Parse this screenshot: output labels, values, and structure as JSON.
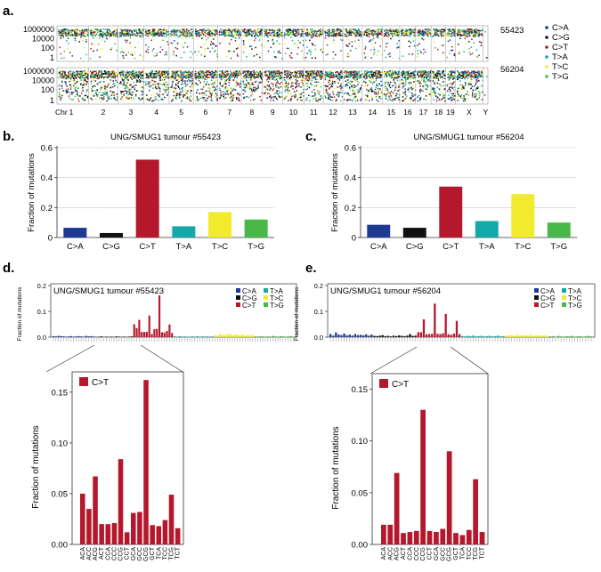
{
  "colors": {
    "C>A": "#1f3a93",
    "C>G": "#111111",
    "C>T": "#b5182c",
    "T>A": "#14a9a9",
    "T>C": "#f2ea2c",
    "T>G": "#4ab848"
  },
  "chart_data": [
    {
      "panel": "a.",
      "type": "scatter",
      "title": "",
      "xlabel_prefix": "Chr",
      "chromosomes": [
        "1",
        "2",
        "3",
        "4",
        "5",
        "6",
        "7",
        "8",
        "9",
        "10",
        "11",
        "12",
        "13",
        "14",
        "15",
        "16",
        "17",
        "18",
        "19",
        "X",
        "Y"
      ],
      "tracks": [
        {
          "label": "55423",
          "yticks": [
            "1000000",
            "10000",
            "100",
            "1"
          ]
        },
        {
          "label": "56204",
          "yticks": [
            "1000000",
            "10000",
            "100",
            "1"
          ]
        }
      ],
      "legend": [
        "C>A",
        "C>G",
        "C>T",
        "T>A",
        "T>C",
        "T>G"
      ]
    },
    {
      "panel": "b.",
      "type": "bar",
      "title": "UNG/SMUG1 tumour #55423",
      "ylabel": "Fraction of mutations",
      "categories": [
        "C>A",
        "C>G",
        "C>T",
        "T>A",
        "T>C",
        "T>G"
      ],
      "values": [
        0.065,
        0.03,
        0.52,
        0.075,
        0.17,
        0.12
      ],
      "ylim": [
        0,
        0.6
      ],
      "yticks": [
        "0",
        "0.2",
        "0.4",
        "0.6"
      ]
    },
    {
      "panel": "c.",
      "type": "bar",
      "title": "UNG/SMUG1 tumour #56204",
      "ylabel": "Fraction of mutations",
      "categories": [
        "C>A",
        "C>G",
        "C>T",
        "T>A",
        "T>C",
        "T>G"
      ],
      "values": [
        0.085,
        0.065,
        0.34,
        0.11,
        0.29,
        0.1
      ],
      "ylim": [
        0,
        0.6
      ],
      "yticks": [
        "0",
        "0.2",
        "0.4",
        "0.6"
      ]
    },
    {
      "panel": "d.",
      "type": "bar",
      "title": "UNG/SMUG1 tumour #55423",
      "ylabel": "Fraction of mutations",
      "ylim": [
        0,
        0.2
      ],
      "yticks": [
        "0.0",
        "0.1",
        "0.2"
      ],
      "legend": [
        "C>A",
        "T>A",
        "C>G",
        "T>C",
        "C>T",
        "T>G"
      ],
      "groups": [
        {
          "name": "C>A",
          "values": [
            0.004,
            0.003,
            0.005,
            0.004,
            0.003,
            0.002,
            0.003,
            0.004,
            0.002,
            0.003,
            0.004,
            0.003,
            0.002,
            0.005,
            0.003,
            0.004
          ]
        },
        {
          "name": "C>G",
          "values": [
            0.002,
            0.001,
            0.002,
            0.003,
            0.001,
            0.002,
            0.001,
            0.002,
            0.001,
            0.003,
            0.002,
            0.001,
            0.002,
            0.001,
            0.002,
            0.003
          ]
        },
        {
          "name": "C>T",
          "values": [
            0.05,
            0.035,
            0.067,
            0.02,
            0.02,
            0.021,
            0.084,
            0.012,
            0.031,
            0.032,
            0.162,
            0.019,
            0.018,
            0.024,
            0.049,
            0.016
          ]
        },
        {
          "name": "T>A",
          "values": [
            0.003,
            0.002,
            0.004,
            0.002,
            0.003,
            0.002,
            0.001,
            0.003,
            0.002,
            0.004,
            0.002,
            0.003,
            0.002,
            0.003,
            0.002,
            0.003
          ]
        },
        {
          "name": "T>C",
          "values": [
            0.008,
            0.006,
            0.012,
            0.01,
            0.009,
            0.011,
            0.014,
            0.007,
            0.01,
            0.009,
            0.008,
            0.011,
            0.006,
            0.009,
            0.007,
            0.008
          ]
        },
        {
          "name": "T>G",
          "values": [
            0.003,
            0.002,
            0.004,
            0.003,
            0.002,
            0.003,
            0.002,
            0.005,
            0.003,
            0.002,
            0.004,
            0.003,
            0.002,
            0.003,
            0.004,
            0.002
          ]
        }
      ]
    },
    {
      "panel": "e.",
      "type": "bar",
      "title": "UNG/SMUG1 tumour #56204",
      "ylabel": "Fraction of mutations",
      "ylim": [
        0,
        0.2
      ],
      "yticks": [
        "0.0",
        "0.1",
        "0.2"
      ],
      "legend": [
        "C>A",
        "T>A",
        "C>G",
        "T>C",
        "C>T",
        "T>G"
      ],
      "groups": [
        {
          "name": "C>A",
          "values": [
            0.012,
            0.006,
            0.018,
            0.01,
            0.008,
            0.014,
            0.007,
            0.01,
            0.006,
            0.012,
            0.008,
            0.009,
            0.007,
            0.011,
            0.006,
            0.01
          ]
        },
        {
          "name": "C>G",
          "values": [
            0.005,
            0.004,
            0.006,
            0.008,
            0.004,
            0.005,
            0.003,
            0.006,
            0.004,
            0.007,
            0.005,
            0.004,
            0.006,
            0.012,
            0.005,
            0.006
          ]
        },
        {
          "name": "C>T",
          "values": [
            0.019,
            0.019,
            0.069,
            0.011,
            0.012,
            0.013,
            0.13,
            0.013,
            0.012,
            0.015,
            0.09,
            0.011,
            0.009,
            0.014,
            0.063,
            0.012
          ]
        },
        {
          "name": "T>A",
          "values": [
            0.004,
            0.003,
            0.005,
            0.004,
            0.006,
            0.003,
            0.004,
            0.005,
            0.003,
            0.004,
            0.005,
            0.003,
            0.004,
            0.006,
            0.003,
            0.004
          ]
        },
        {
          "name": "T>C",
          "values": [
            0.006,
            0.008,
            0.007,
            0.005,
            0.009,
            0.006,
            0.008,
            0.007,
            0.006,
            0.009,
            0.005,
            0.007,
            0.008,
            0.006,
            0.007,
            0.005
          ]
        },
        {
          "name": "T>G",
          "values": [
            0.003,
            0.004,
            0.002,
            0.005,
            0.003,
            0.002,
            0.004,
            0.003,
            0.005,
            0.002,
            0.003,
            0.004,
            0.002,
            0.003,
            0.005,
            0.003
          ]
        }
      ]
    },
    {
      "panel": "d-zoom",
      "type": "bar",
      "legend_label": "C>T",
      "ylabel": "Fraction of mutations",
      "ylim": [
        0,
        0.17
      ],
      "yticks": [
        "0.00",
        "0.05",
        "0.10",
        "0.15"
      ],
      "categories": [
        "ACA",
        "ACC",
        "ACG",
        "ACT",
        "CCA",
        "CCC",
        "CCG",
        "CCT",
        "GCA",
        "GCC",
        "GCG",
        "GCT",
        "TCA",
        "TCC",
        "TCG",
        "TCT"
      ],
      "values": [
        0.05,
        0.035,
        0.067,
        0.02,
        0.02,
        0.021,
        0.084,
        0.012,
        0.031,
        0.032,
        0.162,
        0.019,
        0.018,
        0.024,
        0.049,
        0.016
      ]
    },
    {
      "panel": "e-zoom",
      "type": "bar",
      "legend_label": "C>T",
      "ylabel": "Fraction of mutations",
      "ylim": [
        0,
        0.165
      ],
      "yticks": [
        "0.00",
        "0.05",
        "0.10",
        "0.15"
      ],
      "categories": [
        "ACA",
        "ACC",
        "ACG",
        "ACT",
        "CCA",
        "CCC",
        "CCG",
        "CCT",
        "GCA",
        "GCC",
        "GCG",
        "GCT",
        "TCA",
        "TCC",
        "TCG",
        "TCT"
      ],
      "values": [
        0.019,
        0.019,
        0.069,
        0.011,
        0.012,
        0.013,
        0.13,
        0.013,
        0.012,
        0.015,
        0.09,
        0.011,
        0.009,
        0.014,
        0.063,
        0.012
      ]
    }
  ]
}
